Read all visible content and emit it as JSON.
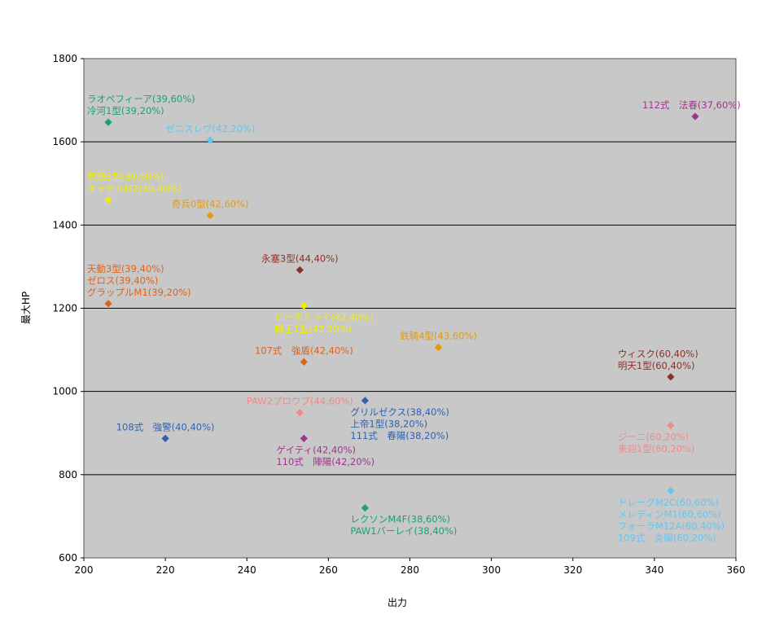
{
  "chart_data": {
    "type": "scatter",
    "title": "",
    "xlabel": "出力",
    "ylabel": "最大HP",
    "xlim": [
      200,
      360
    ],
    "ylim": [
      600,
      1800
    ],
    "x_ticks": [
      "200",
      "220",
      "240",
      "260",
      "280",
      "300",
      "320",
      "340",
      "360"
    ],
    "y_ticks": [
      "600",
      "800",
      "1000",
      "1200",
      "1400",
      "1600",
      "1800"
    ],
    "grid": "horizontal",
    "plot_background": "#c8c8c8",
    "points": [
      {
        "x": 206,
        "y": 1647,
        "color": "#1aa36b",
        "labels": [
          "ラオペフィーア(39,60%)",
          "冷河1型(39,20%)"
        ],
        "label_pos": "above"
      },
      {
        "x": 231,
        "y": 1604,
        "color": "#63c6f0",
        "labels": [
          "ゼニスレヴ(42,20%)"
        ],
        "label_pos": "above"
      },
      {
        "x": 350,
        "y": 1661,
        "color": "#a0358e",
        "labels": [
          "112式　法春(37,60%)"
        ],
        "label_pos": "above"
      },
      {
        "x": 206,
        "y": 1460,
        "color": "#f2ee00",
        "labels": [
          "武徳3型(39,60%)",
          "キャセルM2(39,40%)"
        ],
        "label_pos": "above"
      },
      {
        "x": 231,
        "y": 1423,
        "color": "#e39a12",
        "labels": [
          "奇兵0型(42,60%)"
        ],
        "label_pos": "above"
      },
      {
        "x": 253,
        "y": 1292,
        "color": "#8a3028",
        "labels": [
          "永塞3型(44,40%)"
        ],
        "label_pos": "above"
      },
      {
        "x": 206,
        "y": 1211,
        "color": "#e2621a",
        "labels": [
          "天動3型(39,40%)",
          "ゼロス(39,40%)",
          "グラップルM1(39,20%)"
        ],
        "label_pos": "above"
      },
      {
        "x": 254,
        "y": 1206,
        "color": "#f2ee00",
        "labels": [
          "ビーボドライ(42,40%)",
          "瞬王1型(42,20%)"
        ],
        "label_pos": "below"
      },
      {
        "x": 287,
        "y": 1106,
        "color": "#e39a12",
        "labels": [
          "鉄騎4型(43,60%)"
        ],
        "label_pos": "above"
      },
      {
        "x": 254,
        "y": 1071,
        "color": "#e2621a",
        "labels": [
          "107式　強盾(42,40%)"
        ],
        "label_pos": "above"
      },
      {
        "x": 344,
        "y": 1035,
        "color": "#8a3028",
        "labels": [
          "ウィスク(60,40%)",
          "明天1型(60,40%)"
        ],
        "label_pos": "above"
      },
      {
        "x": 269,
        "y": 978,
        "color": "#2e62b0",
        "labels": [
          "グリルゼクス(38,40%)",
          "上帝1型(38,20%)",
          "111式　春陽(38,20%)"
        ],
        "label_pos": "below"
      },
      {
        "x": 253,
        "y": 949,
        "color": "#f08a8a",
        "labels": [
          "PAW2プロウプ(44,60%)"
        ],
        "label_pos": "above"
      },
      {
        "x": 220,
        "y": 887,
        "color": "#2e62b0",
        "labels": [
          "108式　強警(40,40%)"
        ],
        "label_pos": "above"
      },
      {
        "x": 254,
        "y": 887,
        "color": "#a0358e",
        "labels": [
          "ゲイティ(42,40%)",
          "110式　陣陽(42,20%)"
        ],
        "label_pos": "below"
      },
      {
        "x": 344,
        "y": 918,
        "color": "#f08a8a",
        "labels": [
          "ジーニ(60,20%)",
          "来迎1型(60,20%)"
        ],
        "label_pos": "below"
      },
      {
        "x": 344,
        "y": 761,
        "color": "#63c6f0",
        "labels": [
          "ドレーグM2C(60,60%)",
          "メレディンM1(60,60%)",
          "フォーラM12A(60,40%)",
          "109式　炎陽(60,20%)"
        ],
        "label_pos": "below"
      },
      {
        "x": 269,
        "y": 720,
        "color": "#1aa36b",
        "labels": [
          "レクソンM4F(38,60%)",
          "PAW1バーレイ(38,40%)"
        ],
        "label_pos": "below"
      }
    ]
  }
}
